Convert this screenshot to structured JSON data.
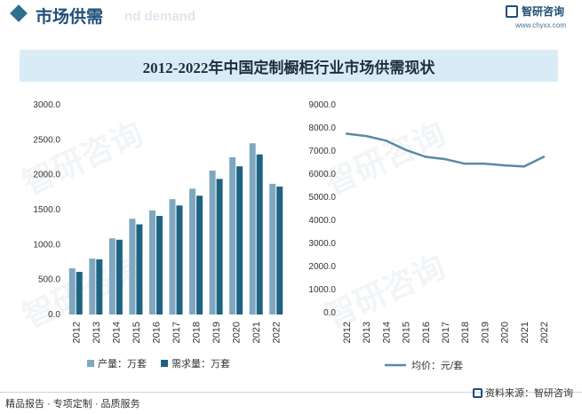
{
  "header": {
    "section_title": "市场供需",
    "faded_subtitle": "nd demand",
    "brand_name": "智研咨询",
    "brand_url": "www.chyxx.com"
  },
  "title": "2012-2022年中国定制橱柜行业市场供需现状",
  "footer": {
    "left": "精品报告 · 专项定制 · 品质服务",
    "right": "资料来源：智研咨询"
  },
  "watermark": "智研咨询",
  "colors": {
    "production": "#7fa8c0",
    "demand": "#1f6383",
    "line": "#5b8aa3"
  },
  "chart_data": [
    {
      "type": "bar",
      "categories": [
        "2012",
        "2013",
        "2014",
        "2015",
        "2016",
        "2017",
        "2018",
        "2019",
        "2020",
        "2021",
        "2022"
      ],
      "series": [
        {
          "name": "产量：万套",
          "values": [
            660,
            800,
            1090,
            1370,
            1490,
            1650,
            1800,
            2060,
            2250,
            2450,
            1870
          ]
        },
        {
          "name": "需求量：万套",
          "values": [
            610,
            790,
            1070,
            1290,
            1410,
            1560,
            1700,
            1940,
            2120,
            2290,
            1830
          ]
        }
      ],
      "ylim": [
        0,
        3000
      ],
      "yticks": [
        "0.0",
        "500.0",
        "1000.0",
        "1500.0",
        "2000.0",
        "2500.0",
        "3000.0"
      ],
      "legend_position": "bottom"
    },
    {
      "type": "line",
      "categories": [
        "2012",
        "2013",
        "2014",
        "2015",
        "2016",
        "2017",
        "2018",
        "2019",
        "2020",
        "2021",
        "2022"
      ],
      "series": [
        {
          "name": "均价：元/套",
          "values": [
            7750,
            7650,
            7450,
            7050,
            6750,
            6650,
            6450,
            6450,
            6380,
            6330,
            6750
          ]
        }
      ],
      "ylim": [
        0,
        9000
      ],
      "yticks": [
        "0.0",
        "1000.0",
        "2000.0",
        "3000.0",
        "4000.0",
        "5000.0",
        "6000.0",
        "7000.0",
        "8000.0",
        "9000.0"
      ],
      "legend_position": "bottom"
    }
  ]
}
